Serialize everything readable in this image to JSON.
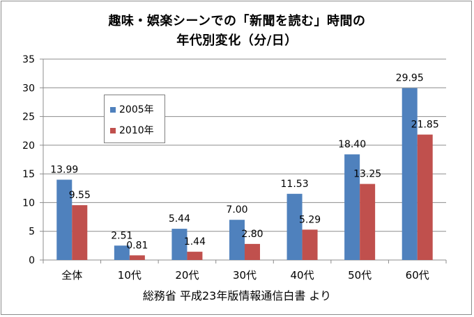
{
  "chart_data": {
    "type": "bar",
    "title": "趣味・娯楽シーンでの「新聞を読む」時間の",
    "subtitle": "年代別変化（分/日）",
    "source": "総務省 平成23年版情報通信白書 より",
    "categories": [
      "全体",
      "10代",
      "20代",
      "30代",
      "40代",
      "50代",
      "60代"
    ],
    "series": [
      {
        "name": "2005年",
        "color": "#4f81bd",
        "values": [
          13.99,
          2.51,
          5.44,
          7.0,
          11.53,
          18.4,
          29.95
        ],
        "labels": [
          "13.99",
          "2.51",
          "5.44",
          "7.00",
          "11.53",
          "18.40",
          "29.95"
        ]
      },
      {
        "name": "2010年",
        "color": "#c0504d",
        "values": [
          9.55,
          0.81,
          1.44,
          2.8,
          5.29,
          13.25,
          21.85
        ],
        "labels": [
          "9.55",
          "0.81",
          "1.44",
          "2.80",
          "5.29",
          "13.25",
          "21.85"
        ]
      }
    ],
    "ylim": [
      0,
      35
    ],
    "yticks": [
      "0",
      "5",
      "10",
      "15",
      "20",
      "25",
      "30",
      "35"
    ],
    "grid": true,
    "legend_position": "top-left"
  }
}
